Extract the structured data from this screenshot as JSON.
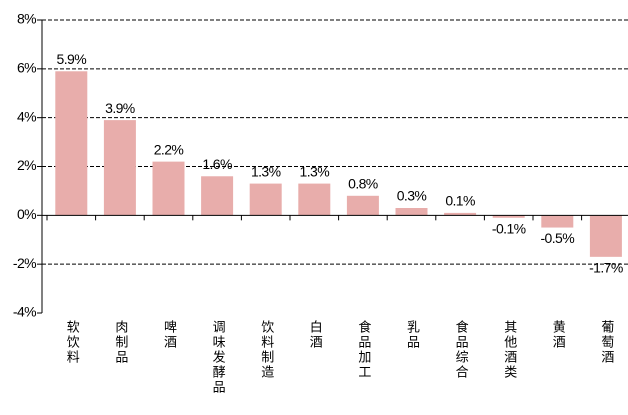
{
  "chart_data": {
    "type": "bar",
    "categories": [
      "软饮料",
      "肉制品",
      "啤酒",
      "调味发酵品",
      "饮料制造",
      "白酒",
      "食品加工",
      "乳品",
      "食品综合",
      "其他酒类",
      "黄酒",
      "葡萄酒"
    ],
    "values": [
      5.9,
      3.9,
      2.2,
      1.6,
      1.3,
      1.3,
      0.8,
      0.3,
      0.1,
      -0.1,
      -0.5,
      -1.7
    ],
    "value_labels": [
      "5.9%",
      "3.9%",
      "2.2%",
      "1.6%",
      "1.3%",
      "1.3%",
      "0.8%",
      "0.3%",
      "0.1%",
      "-0.1%",
      "-0.5%",
      "-1.7%"
    ],
    "color": "#e8adab",
    "ylim": [
      -4,
      8
    ],
    "yticks": [
      {
        "value": -4,
        "label": "-4%"
      },
      {
        "value": -2,
        "label": "-2%"
      },
      {
        "value": 0,
        "label": "0%"
      },
      {
        "value": 2,
        "label": "2%"
      },
      {
        "value": 4,
        "label": "4%"
      },
      {
        "value": 6,
        "label": "6%"
      },
      {
        "value": 8,
        "label": "8%"
      }
    ],
    "grid": true
  }
}
